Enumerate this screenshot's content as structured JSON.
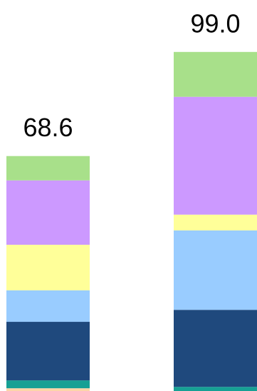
{
  "chart_data": {
    "type": "stacked_bar",
    "series": [
      {
        "color": "#fcd5a8",
        "values": [
          0.8,
          0
        ]
      },
      {
        "color": "#16a094",
        "values": [
          2.3,
          1.2
        ]
      },
      {
        "color": "#1f497d",
        "values": [
          17.1,
          22.5
        ]
      },
      {
        "color": "#99ccff",
        "values": [
          9.2,
          23.2
        ]
      },
      {
        "color": "#ffff99",
        "values": [
          13.3,
          4.6
        ]
      },
      {
        "color": "#cc99ff",
        "values": [
          18.8,
          34.4
        ]
      },
      {
        "color": "#a8e08a",
        "values": [
          7.1,
          13.1
        ]
      }
    ],
    "totals": [
      68.6,
      99
    ],
    "total_labels": [
      "68.6",
      "99.0"
    ]
  }
}
